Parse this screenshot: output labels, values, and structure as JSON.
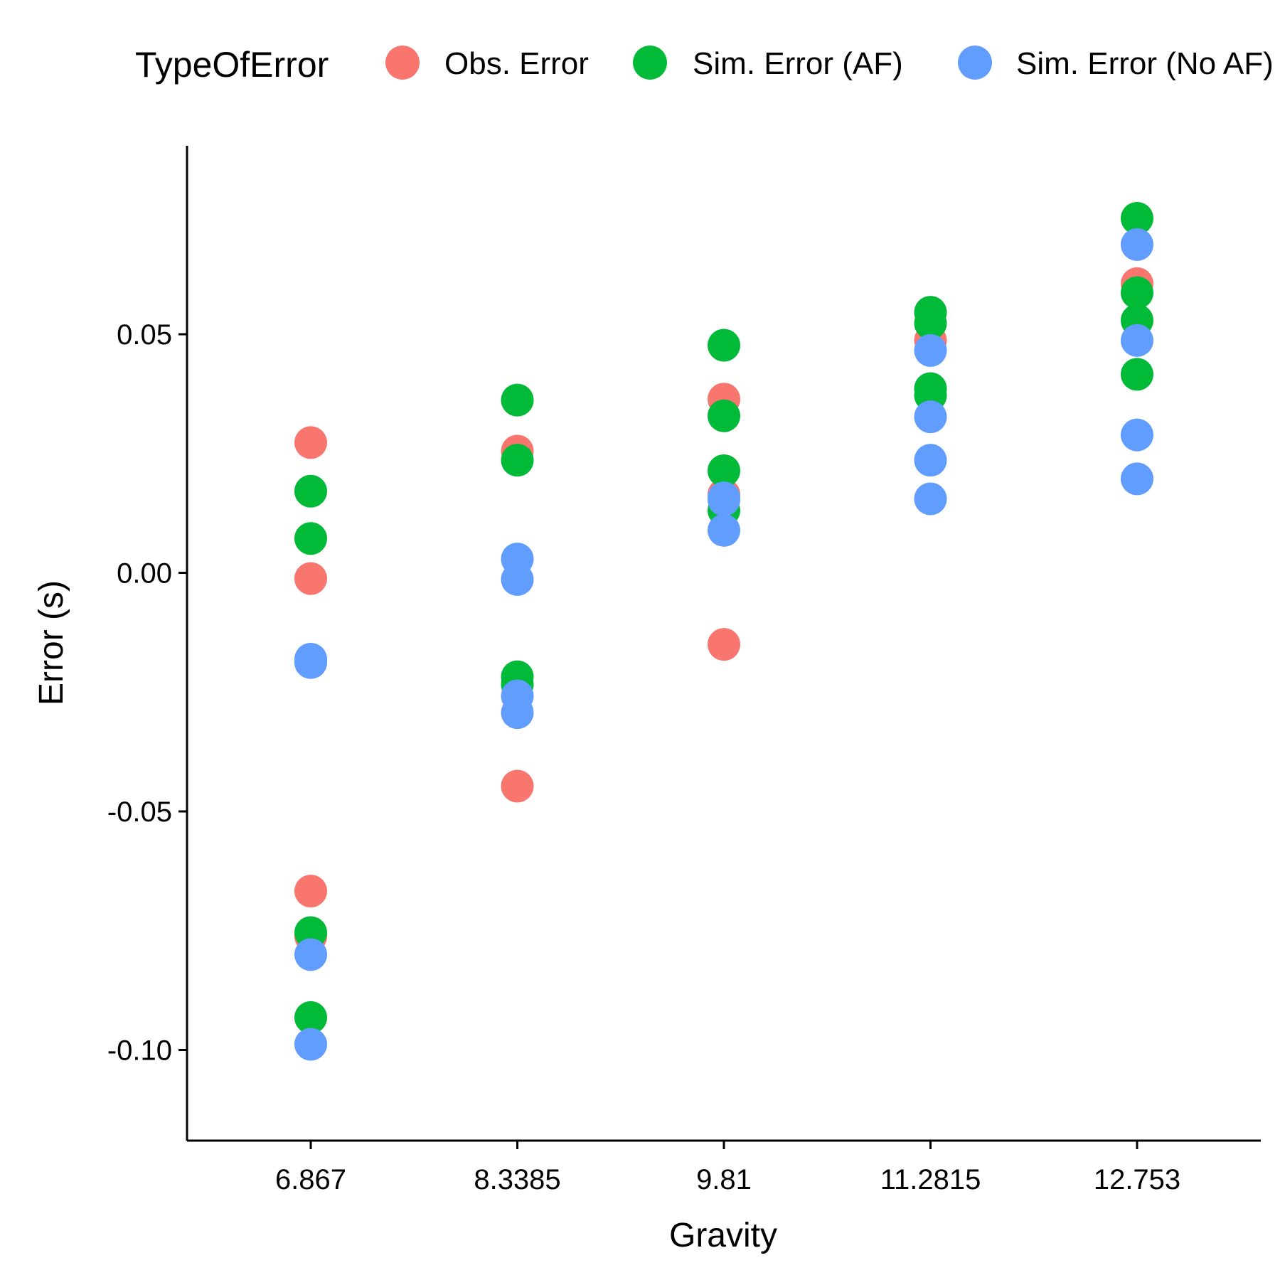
{
  "chart_data": {
    "type": "scatter",
    "xlabel": "Gravity",
    "ylabel": "Error (s)",
    "x_categories": [
      "6.867",
      "8.3385",
      "9.81",
      "11.2815",
      "12.753"
    ],
    "y_ticks": [
      {
        "value": 0.05,
        "label": "0.05"
      },
      {
        "value": 0.0,
        "label": "0.00"
      },
      {
        "value": -0.05,
        "label": "-0.05"
      },
      {
        "value": -0.1,
        "label": "-0.10"
      }
    ],
    "ylim": [
      -0.119,
      0.0895
    ],
    "grid": false,
    "legend": {
      "title": "TypeOfError",
      "position": "top"
    },
    "series": [
      {
        "name": "Obs. Error",
        "color": "#F8766D",
        "points": [
          {
            "x": "6.867",
            "y": 0.0273
          },
          {
            "x": "6.867",
            "y": -0.0012
          },
          {
            "x": "6.867",
            "y": -0.0667
          },
          {
            "x": "6.867",
            "y": -0.0762
          },
          {
            "x": "8.3385",
            "y": 0.0255
          },
          {
            "x": "8.3385",
            "y": -0.0447
          },
          {
            "x": "9.81",
            "y": 0.0364
          },
          {
            "x": "9.81",
            "y": 0.0164
          },
          {
            "x": "9.81",
            "y": -0.015
          },
          {
            "x": "11.2815",
            "y": 0.0487
          },
          {
            "x": "12.753",
            "y": 0.0606
          }
        ]
      },
      {
        "name": "Sim. Error (AF)",
        "color": "#00BA38",
        "points": [
          {
            "x": "6.867",
            "y": 0.0171
          },
          {
            "x": "6.867",
            "y": 0.0072
          },
          {
            "x": "6.867",
            "y": -0.0754
          },
          {
            "x": "6.867",
            "y": -0.0932
          },
          {
            "x": "8.3385",
            "y": 0.0362
          },
          {
            "x": "8.3385",
            "y": 0.0236
          },
          {
            "x": "8.3385",
            "y": -0.0218
          },
          {
            "x": "8.3385",
            "y": -0.0234
          },
          {
            "x": "9.81",
            "y": 0.0477
          },
          {
            "x": "9.81",
            "y": 0.0329
          },
          {
            "x": "9.81",
            "y": 0.0214
          },
          {
            "x": "9.81",
            "y": 0.0131
          },
          {
            "x": "11.2815",
            "y": 0.0546
          },
          {
            "x": "11.2815",
            "y": 0.0523
          },
          {
            "x": "11.2815",
            "y": 0.0386
          },
          {
            "x": "11.2815",
            "y": 0.0372
          },
          {
            "x": "12.753",
            "y": 0.0743
          },
          {
            "x": "12.753",
            "y": 0.0587
          },
          {
            "x": "12.753",
            "y": 0.0529
          },
          {
            "x": "12.753",
            "y": 0.0416
          }
        ]
      },
      {
        "name": "Sim. Error (No AF)",
        "color": "#619CFF",
        "points": [
          {
            "x": "6.867",
            "y": -0.0181
          },
          {
            "x": "6.867",
            "y": -0.0188
          },
          {
            "x": "6.867",
            "y": -0.08
          },
          {
            "x": "6.867",
            "y": -0.0988
          },
          {
            "x": "8.3385",
            "y": 0.0029
          },
          {
            "x": "8.3385",
            "y": -0.0014
          },
          {
            "x": "8.3385",
            "y": -0.0258
          },
          {
            "x": "8.3385",
            "y": -0.0293
          },
          {
            "x": "9.81",
            "y": 0.0157
          },
          {
            "x": "9.81",
            "y": 0.0153
          },
          {
            "x": "9.81",
            "y": 0.0089
          },
          {
            "x": "11.2815",
            "y": 0.0466
          },
          {
            "x": "11.2815",
            "y": 0.0327
          },
          {
            "x": "11.2815",
            "y": 0.0236
          },
          {
            "x": "11.2815",
            "y": 0.0155
          },
          {
            "x": "12.753",
            "y": 0.0688
          },
          {
            "x": "12.753",
            "y": 0.0487
          },
          {
            "x": "12.753",
            "y": 0.0289
          },
          {
            "x": "12.753",
            "y": 0.0197
          }
        ]
      }
    ]
  }
}
